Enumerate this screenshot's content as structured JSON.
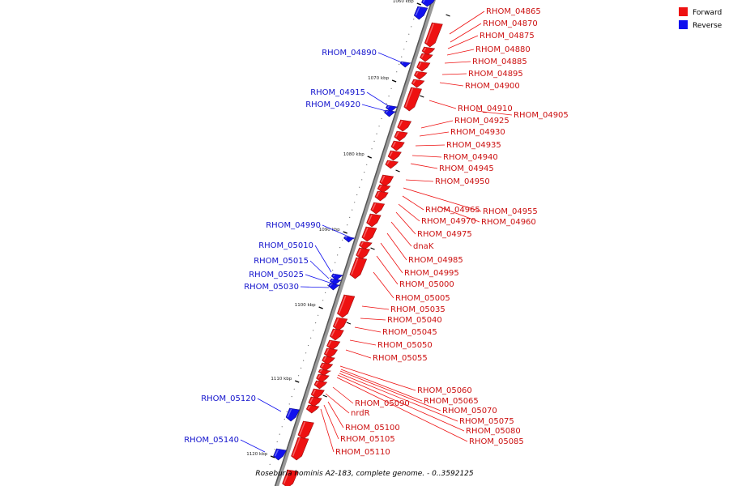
{
  "legend": {
    "forward_label": "Forward",
    "reverse_label": "Reverse",
    "forward_color": "#ee1111",
    "reverse_color": "#1111ee"
  },
  "caption": "Roseburia hominis A2-183, complete genome. - 0..3592125",
  "axis_labels": [
    "1060 kbp",
    "1070 kbp",
    "1080 kbp",
    "1090 kbp",
    "1100 kbp",
    "1110 kbp",
    "1120 kbp"
  ],
  "forward_genes": [
    "RHOM_04865",
    "RHOM_04870",
    "RHOM_04875",
    "RHOM_04880",
    "RHOM_04885",
    "RHOM_04895",
    "RHOM_04900",
    "RHOM_04910",
    "RHOM_04905",
    "RHOM_04925",
    "RHOM_04930",
    "RHOM_04935",
    "RHOM_04940",
    "RHOM_04945",
    "RHOM_04950",
    "RHOM_04955",
    "RHOM_04965",
    "RHOM_04960",
    "RHOM_04970",
    "RHOM_04975",
    "dnaK",
    "RHOM_04985",
    "RHOM_04995",
    "RHOM_05000",
    "RHOM_05005",
    "RHOM_05035",
    "RHOM_05040",
    "RHOM_05045",
    "RHOM_05050",
    "RHOM_05055",
    "RHOM_05060",
    "RHOM_05065",
    "RHOM_05070",
    "RHOM_05075",
    "RHOM_05080",
    "RHOM_05085",
    "RHOM_05090",
    "nrdR",
    "RHOM_05100",
    "RHOM_05105",
    "RHOM_05110"
  ],
  "reverse_genes": [
    "RHOM_04890",
    "RHOM_04915",
    "RHOM_04920",
    "RHOM_04990",
    "RHOM_05010",
    "RHOM_05015",
    "RHOM_05025",
    "RHOM_05030",
    "RHOM_05120",
    "RHOM_05140"
  ]
}
